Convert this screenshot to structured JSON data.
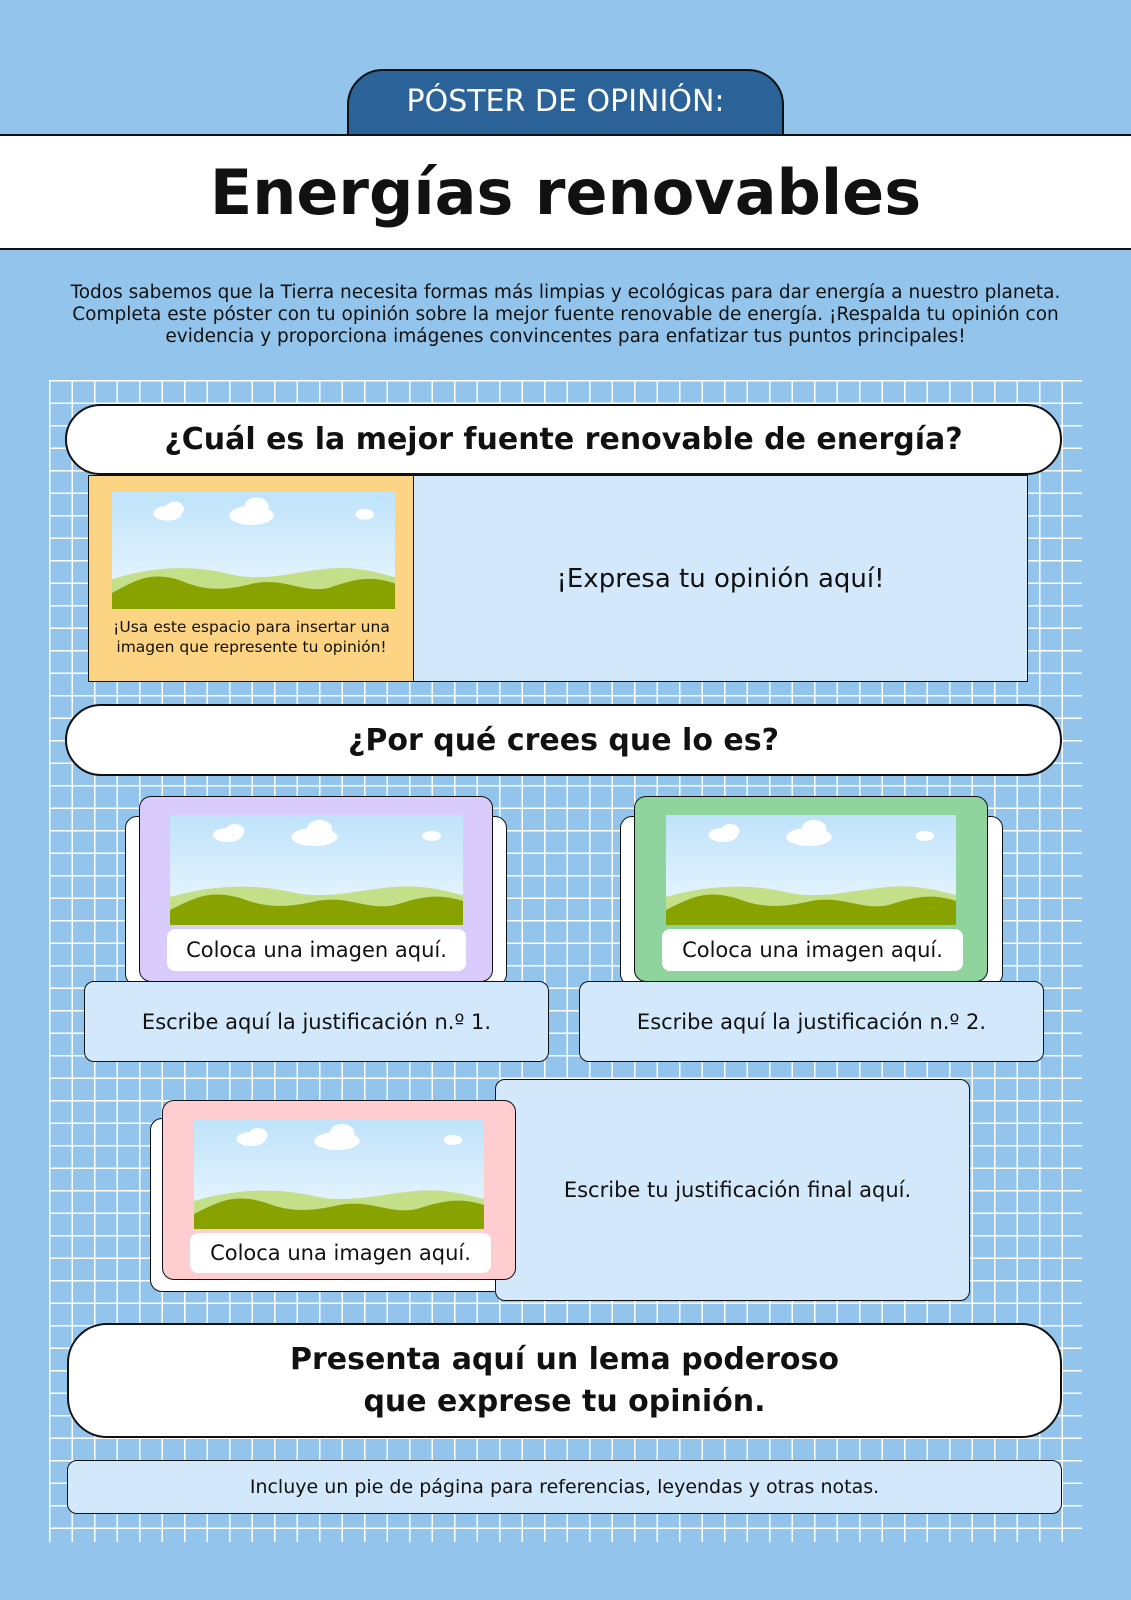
{
  "header": {
    "label": "PÓSTER DE OPINIÓN:",
    "title": "Energías renovables"
  },
  "intro": "Todos sabemos que la Tierra necesita formas más limpias y ecológicas para dar energía a nuestro planeta. Completa este póster con tu opinión sobre la mejor fuente renovable de energía. ¡Respalda tu opinión con evidencia y proporciona imágenes convincentes para enfatizar tus puntos principales!",
  "section1": {
    "question": "¿Cuál es la mejor fuente renovable de energía?",
    "image_caption": "¡Usa este espacio para insertar una imagen que represente tu opinión!",
    "opinion": "¡Expresa tu opinión aquí!"
  },
  "section2": {
    "question": "¿Por qué crees que lo es?"
  },
  "cards": [
    {
      "image_label": "Coloca una imagen aquí.",
      "justification": "Escribe aquí la justificación n.º 1."
    },
    {
      "image_label": "Coloca una imagen aquí.",
      "justification": "Escribe aquí la justificación n.º 2."
    },
    {
      "image_label": "Coloca una imagen aquí.",
      "justification": "Escribe tu justificación final aquí."
    }
  ],
  "slogan": [
    "Presenta aquí un lema poderoso",
    "que exprese tu opinión."
  ],
  "footer": "Incluye un pie de página para referencias, leyendas y otras notas."
}
